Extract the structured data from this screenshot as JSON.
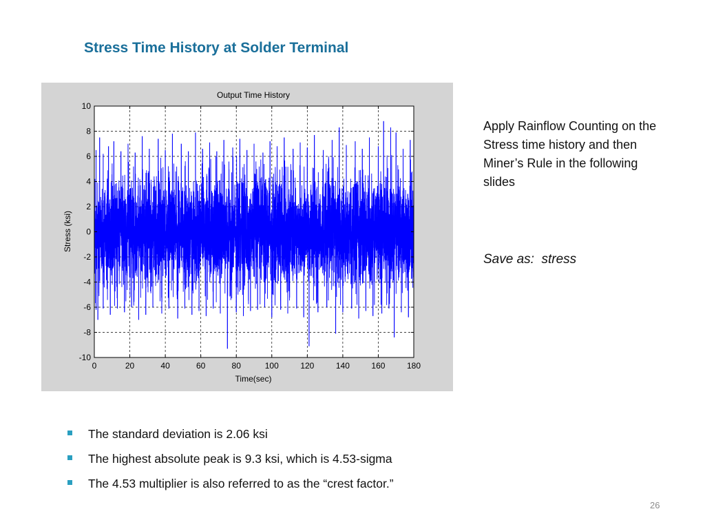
{
  "slide": {
    "title": "Stress Time History at Solder Terminal",
    "side_note": "Apply Rainflow Counting on the Stress time history and then Miner’s Rule in the following slides",
    "save_note": "Save as:  stress",
    "bullets": [
      "The standard deviation is 2.06 ksi",
      "The highest absolute peak is 9.3 ksi, which is 4.53-sigma",
      "The 4.53 multiplier is also referred to as the “crest factor.”"
    ],
    "page_number": "26"
  },
  "colors": {
    "title": "#1a6f9a",
    "bullet_marker": "#2a9fc0",
    "series_line": "#0000ff",
    "figure_background": "#d4d4d4",
    "plot_background": "#ffffff"
  },
  "chart_data": {
    "type": "line",
    "title": "Output Time History",
    "xlabel": "Time(sec)",
    "ylabel": "Stress (ksi)",
    "xlim": [
      0,
      180
    ],
    "ylim": [
      -10,
      10
    ],
    "xticks": [
      0,
      20,
      40,
      60,
      80,
      100,
      120,
      140,
      160,
      180
    ],
    "yticks": [
      10,
      8,
      6,
      4,
      2,
      0,
      -2,
      -4,
      -6,
      -8,
      -10
    ],
    "grid": true,
    "grid_style": "dashed",
    "legend": "none",
    "series_color": "#0000ff",
    "series_kind": "random vibration signal",
    "std_dev": 2.06,
    "mean": 0,
    "upper_peaks": [
      {
        "x": 1,
        "y": 6.5
      },
      {
        "x": 3,
        "y": 7.5
      },
      {
        "x": 5,
        "y": 6.2
      },
      {
        "x": 8,
        "y": 6.8
      },
      {
        "x": 11,
        "y": 7.2
      },
      {
        "x": 15,
        "y": 6.4
      },
      {
        "x": 19,
        "y": 7.0
      },
      {
        "x": 23,
        "y": 6.3
      },
      {
        "x": 27,
        "y": 7.6
      },
      {
        "x": 31,
        "y": 6.6
      },
      {
        "x": 36,
        "y": 7.4
      },
      {
        "x": 40,
        "y": 6.5
      },
      {
        "x": 44,
        "y": 7.8
      },
      {
        "x": 49,
        "y": 7.0
      },
      {
        "x": 53,
        "y": 6.4
      },
      {
        "x": 57,
        "y": 7.9
      },
      {
        "x": 61,
        "y": 6.6
      },
      {
        "x": 65,
        "y": 7.1
      },
      {
        "x": 69,
        "y": 6.4
      },
      {
        "x": 73,
        "y": 7.3
      },
      {
        "x": 78,
        "y": 6.7
      },
      {
        "x": 82,
        "y": 7.4
      },
      {
        "x": 86,
        "y": 6.5
      },
      {
        "x": 90,
        "y": 7.0
      },
      {
        "x": 95,
        "y": 6.3
      },
      {
        "x": 99,
        "y": 7.2
      },
      {
        "x": 103,
        "y": 6.8
      },
      {
        "x": 107,
        "y": 7.5
      },
      {
        "x": 112,
        "y": 6.6
      },
      {
        "x": 116,
        "y": 7.1
      },
      {
        "x": 120,
        "y": 6.7
      },
      {
        "x": 124,
        "y": 7.7
      },
      {
        "x": 129,
        "y": 6.5
      },
      {
        "x": 134,
        "y": 7.3
      },
      {
        "x": 138,
        "y": 8.3
      },
      {
        "x": 142,
        "y": 6.9
      },
      {
        "x": 147,
        "y": 7.2
      },
      {
        "x": 151,
        "y": 6.6
      },
      {
        "x": 155,
        "y": 7.5
      },
      {
        "x": 160,
        "y": 6.8
      },
      {
        "x": 163,
        "y": 8.8
      },
      {
        "x": 167,
        "y": 8.3
      },
      {
        "x": 170,
        "y": 7.9
      },
      {
        "x": 174,
        "y": 6.6
      },
      {
        "x": 178,
        "y": 7.3
      }
    ],
    "lower_peaks": [
      {
        "x": 1,
        "y": -6.2
      },
      {
        "x": 2,
        "y": -7.0
      },
      {
        "x": 5,
        "y": -6.1
      },
      {
        "x": 9,
        "y": -6.6
      },
      {
        "x": 13,
        "y": -6.1
      },
      {
        "x": 17,
        "y": -6.4
      },
      {
        "x": 21,
        "y": -6.0
      },
      {
        "x": 25,
        "y": -7.0
      },
      {
        "x": 29,
        "y": -6.6
      },
      {
        "x": 33,
        "y": -6.0
      },
      {
        "x": 38,
        "y": -6.5
      },
      {
        "x": 42,
        "y": -6.1
      },
      {
        "x": 47,
        "y": -6.9
      },
      {
        "x": 51,
        "y": -6.1
      },
      {
        "x": 55,
        "y": -6.6
      },
      {
        "x": 59,
        "y": -6.3
      },
      {
        "x": 63,
        "y": -6.7
      },
      {
        "x": 67,
        "y": -6.1
      },
      {
        "x": 71,
        "y": -6.5
      },
      {
        "x": 75,
        "y": -9.3
      },
      {
        "x": 80,
        "y": -6.4
      },
      {
        "x": 84,
        "y": -6.7
      },
      {
        "x": 88,
        "y": -6.3
      },
      {
        "x": 92,
        "y": -6.2
      },
      {
        "x": 96,
        "y": -6.0
      },
      {
        "x": 100,
        "y": -6.8
      },
      {
        "x": 105,
        "y": -6.2
      },
      {
        "x": 109,
        "y": -6.5
      },
      {
        "x": 114,
        "y": -6.1
      },
      {
        "x": 118,
        "y": -6.8
      },
      {
        "x": 121,
        "y": -9.1
      },
      {
        "x": 126,
        "y": -6.4
      },
      {
        "x": 131,
        "y": -6.0
      },
      {
        "x": 136,
        "y": -8.1
      },
      {
        "x": 140,
        "y": -6.4
      },
      {
        "x": 145,
        "y": -6.1
      },
      {
        "x": 149,
        "y": -6.9
      },
      {
        "x": 153,
        "y": -6.3
      },
      {
        "x": 157,
        "y": -6.7
      },
      {
        "x": 162,
        "y": -6.5
      },
      {
        "x": 166,
        "y": -6.1
      },
      {
        "x": 169,
        "y": -8.4
      },
      {
        "x": 173,
        "y": -6.4
      },
      {
        "x": 177,
        "y": -6.8
      }
    ]
  }
}
